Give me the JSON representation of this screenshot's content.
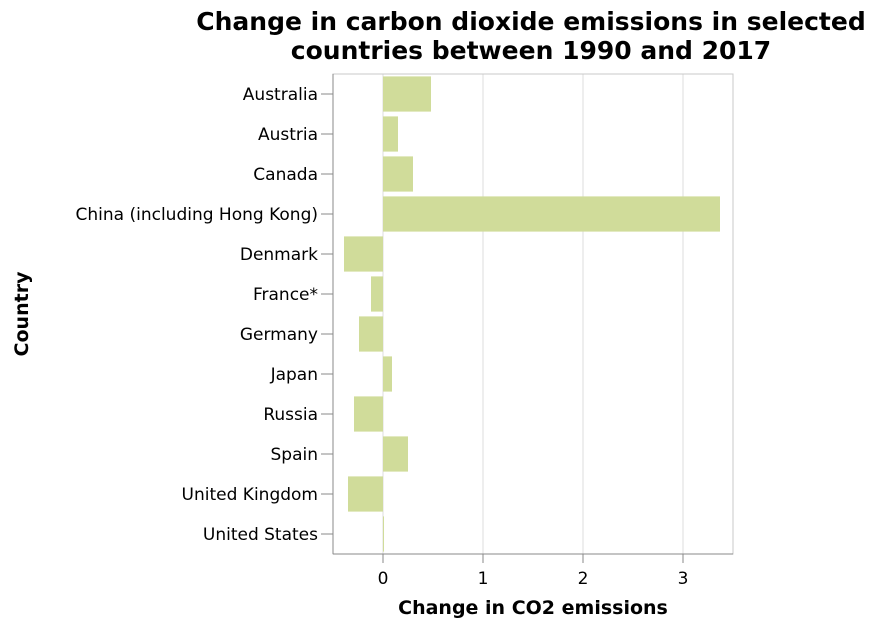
{
  "chart_data": {
    "type": "bar",
    "orientation": "horizontal",
    "title": [
      "Change in carbon dioxide emissions in selected",
      "countries between 1990 and 2017"
    ],
    "xlabel": "Change in CO2 emissions",
    "ylabel": "Country",
    "categories": [
      "Australia",
      "Austria",
      "Canada",
      "China (including Hong Kong)",
      "Denmark",
      "France*",
      "Germany",
      "Japan",
      "Russia",
      "Spain",
      "United Kingdom",
      "United States"
    ],
    "values": [
      0.48,
      0.15,
      0.3,
      3.37,
      -0.39,
      -0.12,
      -0.24,
      0.09,
      -0.29,
      0.25,
      -0.35,
      0.01
    ],
    "xlim": [
      -0.5,
      3.5
    ],
    "xticks": [
      0,
      1,
      2,
      3
    ],
    "grid": true,
    "bar_color": "#d0dc9a"
  }
}
